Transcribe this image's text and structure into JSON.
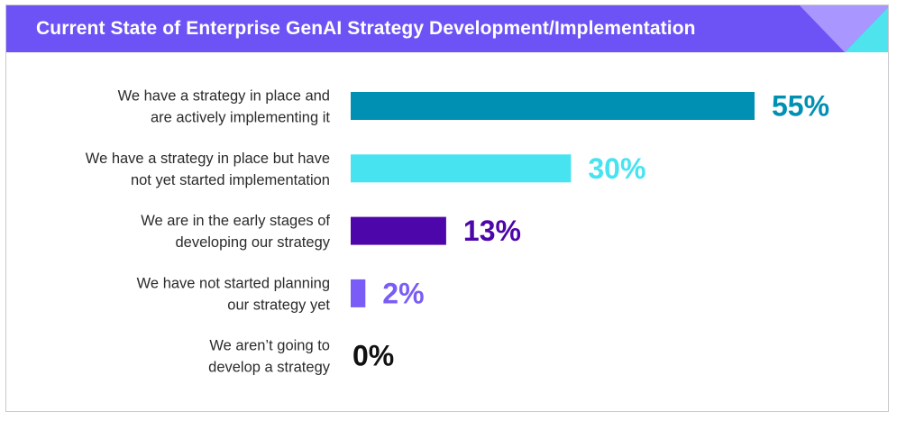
{
  "header": {
    "title": "Current State of Enterprise GenAI Strategy Development/Implementation",
    "color": "#6d53f5",
    "accent_colors": [
      "#a996ff",
      "#4fe3ee"
    ]
  },
  "chart_data": {
    "type": "bar",
    "orientation": "horizontal",
    "title": "Current State of Enterprise GenAI Strategy Development/Implementation",
    "xlim": [
      0,
      55
    ],
    "grid": false,
    "legend": "none",
    "categories": [
      [
        "We have a strategy in place and",
        "are actively implementing it"
      ],
      [
        "We have a strategy in place but have",
        "not yet started implementation"
      ],
      [
        "We are in the early stages of",
        "developing our strategy"
      ],
      [
        "We have not started planning",
        "our strategy yet"
      ],
      [
        "We aren’t going to",
        "develop a strategy"
      ]
    ],
    "values": [
      55,
      30,
      13,
      2,
      0
    ],
    "value_labels": [
      "55%",
      "30%",
      "13%",
      "2%",
      "0%"
    ],
    "colors": [
      "#0090b3",
      "#47e3f1",
      "#4c06a9",
      "#7a5cf6",
      "#111111"
    ]
  }
}
